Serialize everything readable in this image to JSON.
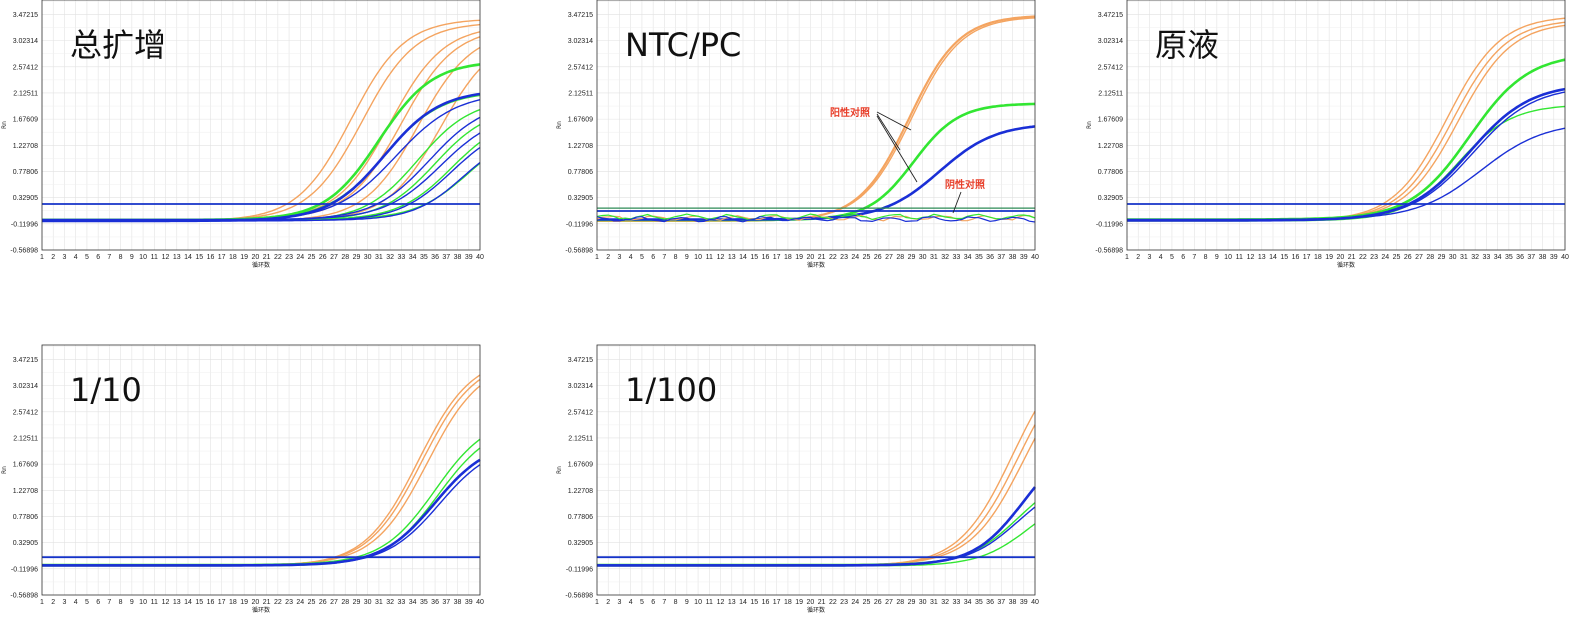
{
  "colors": {
    "orange": "#f4a460",
    "green": "#32e632",
    "blue": "#1a2fd6",
    "threshold": "#1533c8",
    "grid": "#e2e2e2",
    "annotation": "#e8402c"
  },
  "chart_data": [
    {
      "type": "line",
      "title": "总扩增",
      "xlabel": "循环数",
      "ylabel": "Rn",
      "ylim": [
        -0.56898,
        3.72
      ],
      "xlim": [
        1,
        40
      ],
      "yticks": [
        "3.47215",
        "3.02314",
        "2.57412",
        "2.12511",
        "1.67609",
        "1.22708",
        "0.77806",
        "0.32905",
        "-0.11996",
        "-0.56898"
      ],
      "xticks": [
        "1",
        "2",
        "3",
        "4",
        "5",
        "6",
        "7",
        "8",
        "9",
        "10",
        "11",
        "12",
        "13",
        "14",
        "15",
        "16",
        "17",
        "18",
        "19",
        "20",
        "21",
        "22",
        "23",
        "24",
        "25",
        "26",
        "27",
        "28",
        "29",
        "30",
        "31",
        "32",
        "33",
        "34",
        "35",
        "36",
        "37",
        "38",
        "39",
        "40"
      ],
      "threshold": 0.22,
      "grid": true,
      "series": [
        {
          "color": "orange",
          "ct": 28.5,
          "plateau": 3.47,
          "k": 0.42,
          "w": 1.4
        },
        {
          "color": "orange",
          "ct": 29.5,
          "plateau": 3.4,
          "k": 0.42,
          "w": 1.4
        },
        {
          "color": "orange",
          "ct": 32.0,
          "plateau": 3.34,
          "k": 0.42,
          "w": 1.4
        },
        {
          "color": "orange",
          "ct": 33.0,
          "plateau": 3.3,
          "k": 0.42,
          "w": 1.4
        },
        {
          "color": "orange",
          "ct": 34.5,
          "plateau": 3.27,
          "k": 0.42,
          "w": 1.4
        },
        {
          "color": "orange",
          "ct": 36.5,
          "plateau": 3.2,
          "k": 0.42,
          "w": 1.4
        },
        {
          "color": "green",
          "ct": 31.0,
          "plateau": 2.73,
          "k": 0.42,
          "w": 2.6
        },
        {
          "color": "green",
          "ct": 31.5,
          "plateau": 2.2,
          "k": 0.4,
          "w": 1.4
        },
        {
          "color": "green",
          "ct": 34.5,
          "plateau": 2.1,
          "k": 0.42,
          "w": 1.4
        },
        {
          "color": "green",
          "ct": 36.0,
          "plateau": 1.95,
          "k": 0.42,
          "w": 1.4
        },
        {
          "color": "green",
          "ct": 37.5,
          "plateau": 1.8,
          "k": 0.42,
          "w": 1.4
        },
        {
          "color": "green",
          "ct": 39.0,
          "plateau": 1.6,
          "k": 0.42,
          "w": 1.4
        },
        {
          "color": "blue",
          "ct": 31.5,
          "plateau": 2.25,
          "k": 0.4,
          "w": 2.6
        },
        {
          "color": "blue",
          "ct": 32.5,
          "plateau": 2.2,
          "k": 0.37,
          "w": 1.4
        },
        {
          "color": "blue",
          "ct": 35.5,
          "plateau": 2.05,
          "k": 0.4,
          "w": 1.4
        },
        {
          "color": "blue",
          "ct": 36.5,
          "plateau": 1.85,
          "k": 0.4,
          "w": 1.4
        },
        {
          "color": "blue",
          "ct": 37.5,
          "plateau": 1.7,
          "k": 0.42,
          "w": 1.4
        },
        {
          "color": "blue",
          "ct": 38.5,
          "plateau": 1.5,
          "k": 0.45,
          "w": 1.4
        }
      ]
    },
    {
      "type": "line",
      "title": "NTC/PC",
      "xlabel": "循环数",
      "ylabel": "Rn",
      "ylim": [
        -0.56898,
        3.72
      ],
      "xlim": [
        1,
        40
      ],
      "yticks": [
        "3.47215",
        "3.02314",
        "2.57412",
        "2.12511",
        "1.67609",
        "1.22708",
        "0.77806",
        "0.32905",
        "-0.11996",
        "-0.56898"
      ],
      "xticks": [
        "1",
        "2",
        "3",
        "4",
        "5",
        "6",
        "7",
        "8",
        "9",
        "10",
        "11",
        "12",
        "13",
        "14",
        "15",
        "16",
        "17",
        "18",
        "19",
        "20",
        "21",
        "22",
        "23",
        "24",
        "25",
        "26",
        "27",
        "28",
        "29",
        "30",
        "31",
        "32",
        "33",
        "34",
        "35",
        "36",
        "37",
        "38",
        "39",
        "40"
      ],
      "threshold": 0.1,
      "grid": true,
      "annotations": [
        "阳性对照",
        "阴性对照"
      ],
      "series": [
        {
          "color": "orange",
          "ct": 28.8,
          "plateau": 3.53,
          "k": 0.45,
          "w": 2.2
        },
        {
          "color": "orange",
          "ct": 29.0,
          "plateau": 3.5,
          "k": 0.45,
          "w": 1.4
        },
        {
          "color": "green",
          "ct": 29.2,
          "plateau": 2.0,
          "k": 0.5,
          "w": 2.6
        },
        {
          "color": "blue",
          "ct": 31.5,
          "plateau": 1.65,
          "k": 0.4,
          "w": 2.6
        },
        {
          "color": "orange",
          "noise": true,
          "w": 1.2
        },
        {
          "color": "green",
          "noise": true,
          "w": 1.2
        },
        {
          "color": "blue",
          "noise": true,
          "w": 1.2
        }
      ]
    },
    {
      "type": "line",
      "title": "原液",
      "xlabel": "循环数",
      "ylabel": "Rn",
      "ylim": [
        -0.56898,
        3.72
      ],
      "xlim": [
        1,
        40
      ],
      "yticks": [
        "3.47215",
        "3.02314",
        "2.57412",
        "2.12511",
        "1.67609",
        "1.22708",
        "0.77806",
        "0.32905",
        "-0.11996",
        "-0.56898"
      ],
      "xticks": [
        "1",
        "2",
        "3",
        "4",
        "5",
        "6",
        "7",
        "8",
        "9",
        "10",
        "11",
        "12",
        "13",
        "14",
        "15",
        "16",
        "17",
        "18",
        "19",
        "20",
        "21",
        "22",
        "23",
        "24",
        "25",
        "26",
        "27",
        "28",
        "29",
        "30",
        "31",
        "32",
        "33",
        "34",
        "35",
        "36",
        "37",
        "38",
        "39",
        "40"
      ],
      "threshold": 0.22,
      "grid": true,
      "series": [
        {
          "color": "orange",
          "ct": 29.5,
          "plateau": 3.52,
          "k": 0.42,
          "w": 1.4
        },
        {
          "color": "orange",
          "ct": 30.0,
          "plateau": 3.45,
          "k": 0.42,
          "w": 1.4
        },
        {
          "color": "orange",
          "ct": 30.5,
          "plateau": 3.4,
          "k": 0.42,
          "w": 1.4
        },
        {
          "color": "green",
          "ct": 31.5,
          "plateau": 2.85,
          "k": 0.38,
          "w": 2.6
        },
        {
          "color": "green",
          "ct": 30.5,
          "plateau": 2.0,
          "k": 0.42,
          "w": 1.4
        },
        {
          "color": "blue",
          "ct": 31.5,
          "plateau": 2.35,
          "k": 0.37,
          "w": 2.6
        },
        {
          "color": "blue",
          "ct": 31.8,
          "plateau": 2.3,
          "k": 0.37,
          "w": 1.4
        },
        {
          "color": "blue",
          "ct": 32.5,
          "plateau": 1.68,
          "k": 0.35,
          "w": 1.4
        }
      ]
    },
    {
      "type": "line",
      "title": "1/10",
      "xlabel": "循环数",
      "ylabel": "Rn",
      "ylim": [
        -0.56898,
        3.72
      ],
      "xlim": [
        1,
        40
      ],
      "yticks": [
        "3.47215",
        "3.02314",
        "2.57412",
        "2.12511",
        "1.67609",
        "1.22708",
        "0.77806",
        "0.32905",
        "-0.11996",
        "-0.56898"
      ],
      "xticks": [
        "1",
        "2",
        "3",
        "4",
        "5",
        "6",
        "7",
        "8",
        "9",
        "10",
        "11",
        "12",
        "13",
        "14",
        "15",
        "16",
        "17",
        "18",
        "19",
        "20",
        "21",
        "22",
        "23",
        "24",
        "25",
        "26",
        "27",
        "28",
        "29",
        "30",
        "31",
        "32",
        "33",
        "34",
        "35",
        "36",
        "37",
        "38",
        "39",
        "40"
      ],
      "threshold": 0.08,
      "grid": true,
      "series": [
        {
          "color": "orange",
          "ct": 34.5,
          "plateau": 3.6,
          "k": 0.42,
          "w": 1.4
        },
        {
          "color": "orange",
          "ct": 34.8,
          "plateau": 3.55,
          "k": 0.42,
          "w": 1.4
        },
        {
          "color": "orange",
          "ct": 35.3,
          "plateau": 3.5,
          "k": 0.42,
          "w": 1.4
        },
        {
          "color": "green",
          "ct": 36.0,
          "plateau": 2.55,
          "k": 0.42,
          "w": 1.4
        },
        {
          "color": "green",
          "ct": 36.3,
          "plateau": 2.45,
          "k": 0.42,
          "w": 1.4
        },
        {
          "color": "blue",
          "ct": 36.0,
          "plateau": 2.15,
          "k": 0.42,
          "w": 2.6
        },
        {
          "color": "blue",
          "ct": 36.4,
          "plateau": 2.1,
          "k": 0.42,
          "w": 1.4
        }
      ]
    },
    {
      "type": "line",
      "title": "1/100",
      "xlabel": "循环数",
      "ylabel": "Rn",
      "ylim": [
        -0.56898,
        3.72
      ],
      "xlim": [
        1,
        40
      ],
      "yticks": [
        "3.47215",
        "3.02314",
        "2.57412",
        "2.12511",
        "1.67609",
        "1.22708",
        "0.77806",
        "0.32905",
        "-0.11996",
        "-0.56898"
      ],
      "xticks": [
        "1",
        "2",
        "3",
        "4",
        "5",
        "6",
        "7",
        "8",
        "9",
        "10",
        "11",
        "12",
        "13",
        "14",
        "15",
        "16",
        "17",
        "18",
        "19",
        "20",
        "21",
        "22",
        "23",
        "24",
        "25",
        "26",
        "27",
        "28",
        "29",
        "30",
        "31",
        "32",
        "33",
        "34",
        "35",
        "36",
        "37",
        "38",
        "39",
        "40"
      ],
      "threshold": 0.08,
      "grid": true,
      "series": [
        {
          "color": "orange",
          "ct": 38.0,
          "plateau": 3.8,
          "k": 0.42,
          "w": 1.4
        },
        {
          "color": "orange",
          "ct": 38.5,
          "plateau": 3.7,
          "k": 0.42,
          "w": 1.4
        },
        {
          "color": "orange",
          "ct": 39.0,
          "plateau": 3.6,
          "k": 0.42,
          "w": 1.4
        },
        {
          "color": "green",
          "ct": 38.5,
          "plateau": 1.6,
          "k": 0.45,
          "w": 1.4
        },
        {
          "color": "green",
          "ct": 39.5,
          "plateau": 1.3,
          "k": 0.45,
          "w": 1.4
        },
        {
          "color": "blue",
          "ct": 39.0,
          "plateau": 2.2,
          "k": 0.45,
          "w": 2.6
        },
        {
          "color": "blue",
          "ct": 38.5,
          "plateau": 1.5,
          "k": 0.45,
          "w": 1.4
        }
      ]
    }
  ]
}
